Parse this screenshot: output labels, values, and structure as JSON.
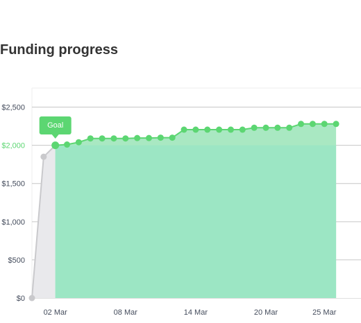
{
  "title": "Funding progress",
  "colors": {
    "accent": "#5cd672",
    "goal_area": "#9ce6c4",
    "area": "#a9e8c2",
    "pre_goal_line": "#c9c9cc",
    "pre_goal_area": "#e9e9ec",
    "grid": "#c6c6c6",
    "text": "#444c5c"
  },
  "chart_data": {
    "type": "area",
    "title": "Funding progress",
    "xlabel": "",
    "ylabel": "",
    "x_ticks": [
      "02 Mar",
      "08 Mar",
      "14 Mar",
      "20 Mar",
      "25 Mar"
    ],
    "y_ticks": [
      "$0",
      "$500",
      "$1,000",
      "$1,500",
      "$2,000",
      "$2,500"
    ],
    "ylim": [
      0,
      2750
    ],
    "goal": {
      "label": "Goal",
      "value": 2000,
      "date": "02 Mar"
    },
    "grid": true,
    "legend": "none",
    "series": [
      {
        "x": [
          "28 Feb",
          "01 Mar",
          "02 Mar",
          "03 Mar",
          "04 Mar",
          "05 Mar",
          "06 Mar",
          "07 Mar",
          "08 Mar",
          "09 Mar",
          "10 Mar",
          "11 Mar",
          "12 Mar",
          "13 Mar",
          "14 Mar",
          "15 Mar",
          "16 Mar",
          "17 Mar",
          "18 Mar",
          "19 Mar",
          "20 Mar",
          "21 Mar",
          "22 Mar",
          "23 Mar",
          "24 Mar",
          "25 Mar",
          "26 Mar"
        ],
        "values": [
          0,
          1850,
          2000,
          2010,
          2040,
          2090,
          2090,
          2090,
          2090,
          2095,
          2095,
          2100,
          2100,
          2205,
          2205,
          2205,
          2205,
          2205,
          2205,
          2230,
          2230,
          2230,
          2230,
          2280,
          2280,
          2280,
          2280
        ]
      }
    ]
  }
}
